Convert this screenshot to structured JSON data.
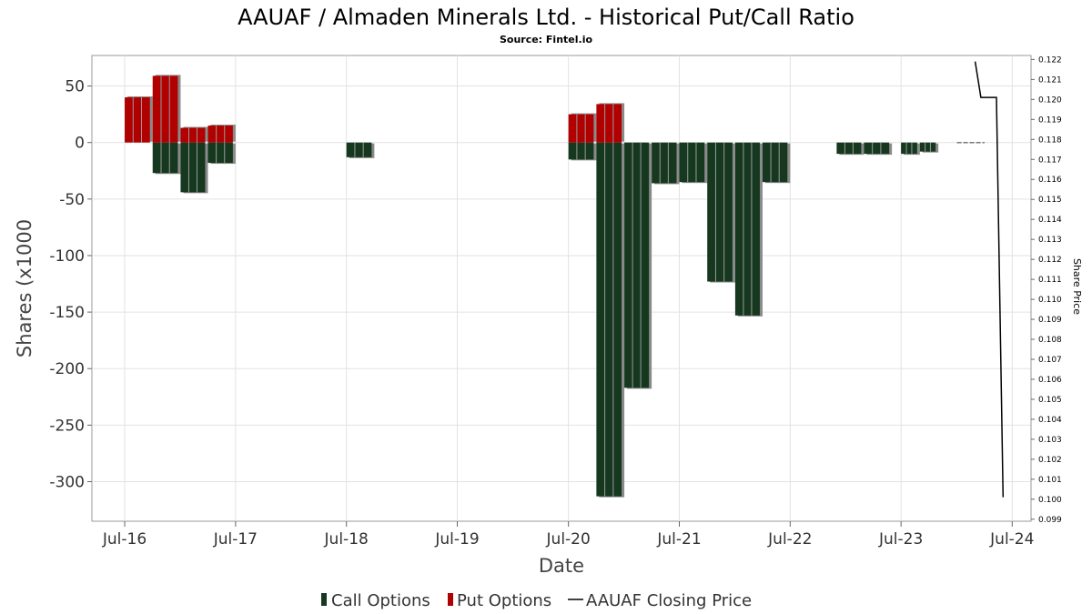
{
  "chart_data": {
    "type": "bar",
    "title": "AAUAF / Almaden Minerals Ltd. - Historical Put/Call Ratio",
    "subtitle": "Source: Fintel.io",
    "xlabel": "Date",
    "ylabel": "Shares (x1000",
    "y2label": "Share Price",
    "ylim": [
      -335,
      77
    ],
    "y_ticks": [
      50,
      0,
      -50,
      -100,
      -150,
      -200,
      -250,
      -300
    ],
    "y_tick_labels": [
      "50",
      "0",
      "-50",
      "-100",
      "-150",
      "-200",
      "-250",
      "-300"
    ],
    "y2lim": [
      0.0989,
      0.1222
    ],
    "y2_ticks": [
      0.122,
      0.121,
      0.12,
      0.119,
      0.118,
      0.117,
      0.116,
      0.115,
      0.114,
      0.113,
      0.112,
      0.111,
      0.11,
      0.109,
      0.108,
      0.107,
      0.106,
      0.105,
      0.104,
      0.103,
      0.102,
      0.101,
      0.1,
      0.099
    ],
    "y2_tick_labels": [
      "0.122",
      "0.121",
      "0.120",
      "0.119",
      "0.118",
      "0.117",
      "0.116",
      "0.115",
      "0.114",
      "0.113",
      "0.112",
      "0.111",
      "0.110",
      "0.109",
      "0.108",
      "0.107",
      "0.106",
      "0.105",
      "0.104",
      "0.103",
      "0.102",
      "0.101",
      "0.100",
      "0.099"
    ],
    "xlim": [
      "2016-03-15",
      "2024-09-01"
    ],
    "x_ticks": [
      "2016-07-01",
      "2017-07-01",
      "2018-07-01",
      "2019-07-01",
      "2020-07-01",
      "2021-07-01",
      "2022-07-01",
      "2023-07-01",
      "2024-07-01"
    ],
    "x_tick_labels": [
      "Jul-16",
      "Jul-17",
      "Jul-18",
      "Jul-19",
      "Jul-20",
      "Jul-21",
      "Jul-22",
      "Jul-23",
      "Jul-24"
    ],
    "grid": true,
    "legend": "bottom-center",
    "series": [
      {
        "name": "Call Options",
        "color": "#15381f",
        "bars": [
          {
            "start": "2016-10-01",
            "end": "2017-01-01",
            "value": -27
          },
          {
            "start": "2017-01-01",
            "end": "2017-04-01",
            "value": -44
          },
          {
            "start": "2017-04-01",
            "end": "2017-07-01",
            "value": -18
          },
          {
            "start": "2018-07-01",
            "end": "2018-10-01",
            "value": -13
          },
          {
            "start": "2020-07-01",
            "end": "2020-10-01",
            "value": -15
          },
          {
            "start": "2020-10-01",
            "end": "2021-01-01",
            "value": -313
          },
          {
            "start": "2021-01-01",
            "end": "2021-04-01",
            "value": -217
          },
          {
            "start": "2021-04-01",
            "end": "2021-07-01",
            "value": -36
          },
          {
            "start": "2021-07-01",
            "end": "2021-10-01",
            "value": -35
          },
          {
            "start": "2021-10-01",
            "end": "2022-01-01",
            "value": -123
          },
          {
            "start": "2022-01-01",
            "end": "2022-04-01",
            "value": -153
          },
          {
            "start": "2022-04-01",
            "end": "2022-07-01",
            "value": -35
          },
          {
            "start": "2022-12-01",
            "end": "2023-03-01",
            "value": -10
          },
          {
            "start": "2023-03-01",
            "end": "2023-06-01",
            "value": -10
          },
          {
            "start": "2023-07-01",
            "end": "2023-09-01",
            "value": -10
          },
          {
            "start": "2023-09-01",
            "end": "2023-11-01",
            "value": -8
          }
        ]
      },
      {
        "name": "Put Options",
        "color": "#b00000",
        "bars": [
          {
            "start": "2016-07-01",
            "end": "2016-10-01",
            "value": 40
          },
          {
            "start": "2016-10-01",
            "end": "2017-01-01",
            "value": 59
          },
          {
            "start": "2017-01-01",
            "end": "2017-04-01",
            "value": 13
          },
          {
            "start": "2017-04-01",
            "end": "2017-07-01",
            "value": 15
          },
          {
            "start": "2020-07-01",
            "end": "2020-10-01",
            "value": 25
          },
          {
            "start": "2020-10-01",
            "end": "2021-01-01",
            "value": 34
          }
        ]
      },
      {
        "name": "AAUAF Closing Price",
        "color": "#000000",
        "type": "line",
        "points": [
          {
            "x": "2024-03-01",
            "y": 0.1219
          },
          {
            "x": "2024-03-20",
            "y": 0.1201
          },
          {
            "x": "2024-05-10",
            "y": 0.1201
          },
          {
            "x": "2024-06-01",
            "y": 0.1001
          }
        ]
      }
    ],
    "zero_marker": {
      "start": "2024-01-01",
      "end": "2024-04-01",
      "value": 0
    },
    "legend_items": [
      {
        "label": "Call Options",
        "color": "#15381f",
        "kind": "bar"
      },
      {
        "label": "Put Options",
        "color": "#b00000",
        "kind": "bar"
      },
      {
        "label": "AAUAF Closing Price",
        "color": "#000000",
        "kind": "line"
      }
    ]
  }
}
